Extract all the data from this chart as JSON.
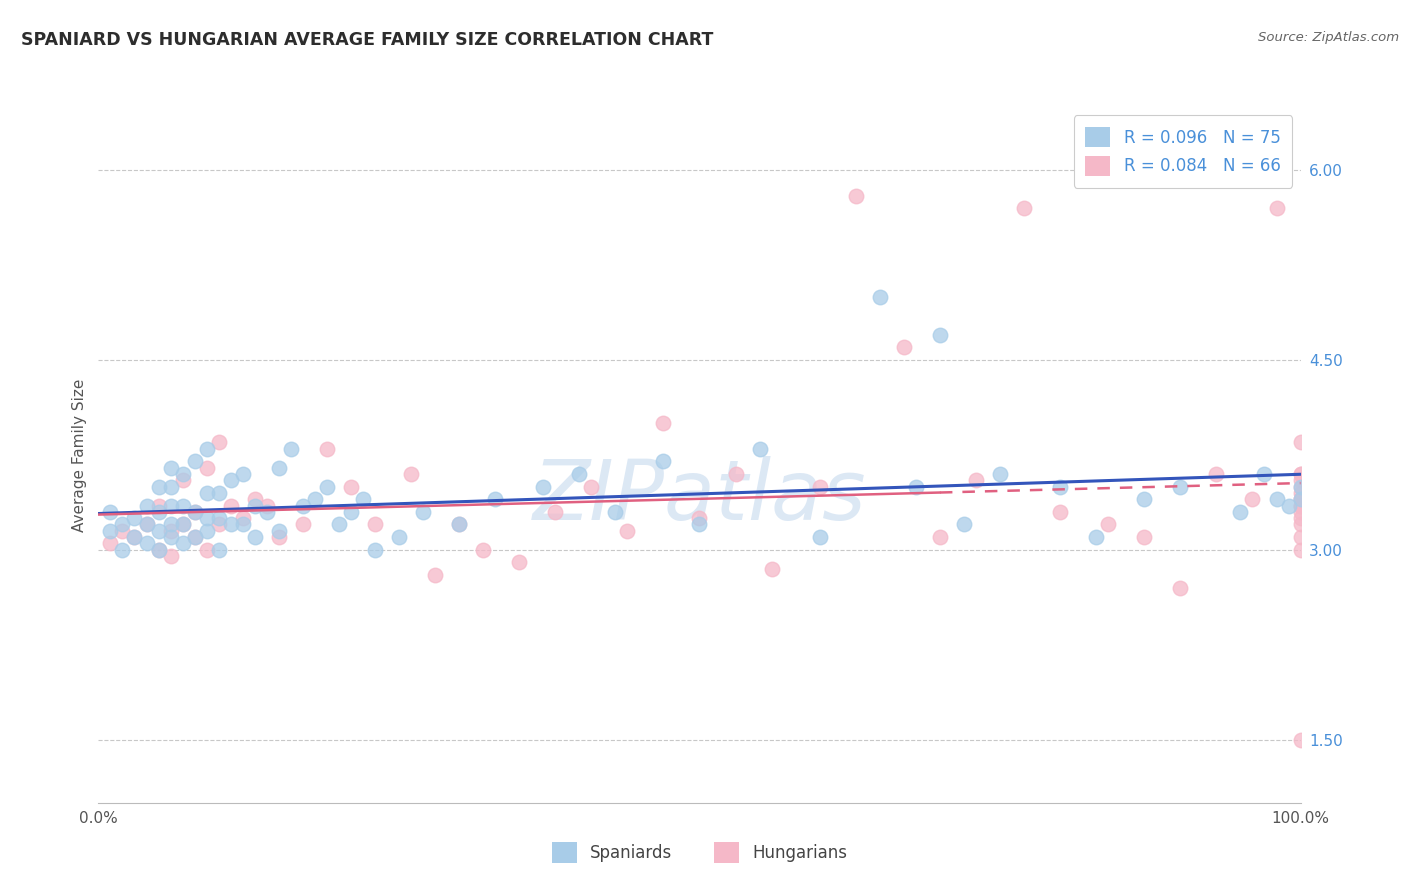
{
  "title": "SPANIARD VS HUNGARIAN AVERAGE FAMILY SIZE CORRELATION CHART",
  "source": "Source: ZipAtlas.com",
  "ylabel": "Average Family Size",
  "yticks": [
    1.5,
    3.0,
    4.5,
    6.0
  ],
  "xlim": [
    0.0,
    100.0
  ],
  "ylim": [
    1.0,
    6.5
  ],
  "legend_r1": "R = 0.096   N = 75",
  "legend_r2": "R = 0.084   N = 66",
  "spaniards_color": "#a8cce8",
  "hungarians_color": "#f5b8c8",
  "trend_spaniards_color": "#3355bb",
  "trend_hungarians_color": "#e06080",
  "background_color": "#ffffff",
  "grid_color": "#c8c8c8",
  "watermark": "ZIPatlas",
  "watermark_color": "#c5d9ee",
  "title_color": "#2d2d2d",
  "source_color": "#666666",
  "axis_color": "#555555",
  "tick_color": "#4a90d9",
  "spaniards_x": [
    1,
    1,
    2,
    2,
    3,
    3,
    4,
    4,
    4,
    5,
    5,
    5,
    5,
    6,
    6,
    6,
    6,
    6,
    7,
    7,
    7,
    7,
    8,
    8,
    8,
    9,
    9,
    9,
    9,
    10,
    10,
    10,
    11,
    11,
    12,
    12,
    13,
    13,
    14,
    15,
    15,
    16,
    17,
    18,
    19,
    20,
    21,
    22,
    23,
    25,
    27,
    30,
    33,
    37,
    40,
    43,
    47,
    50,
    55,
    60,
    65,
    68,
    70,
    72,
    75,
    80,
    83,
    87,
    90,
    95,
    97,
    98,
    99,
    100,
    100
  ],
  "spaniards_y": [
    3.15,
    3.3,
    3.0,
    3.2,
    3.1,
    3.25,
    3.05,
    3.2,
    3.35,
    3.15,
    3.0,
    3.3,
    3.5,
    3.1,
    3.2,
    3.35,
    3.5,
    3.65,
    3.05,
    3.2,
    3.35,
    3.6,
    3.1,
    3.3,
    3.7,
    3.15,
    3.25,
    3.45,
    3.8,
    3.0,
    3.25,
    3.45,
    3.2,
    3.55,
    3.2,
    3.6,
    3.1,
    3.35,
    3.3,
    3.15,
    3.65,
    3.8,
    3.35,
    3.4,
    3.5,
    3.2,
    3.3,
    3.4,
    3.0,
    3.1,
    3.3,
    3.2,
    3.4,
    3.5,
    3.6,
    3.3,
    3.7,
    3.2,
    3.8,
    3.1,
    5.0,
    3.5,
    4.7,
    3.2,
    3.6,
    3.5,
    3.1,
    3.4,
    3.5,
    3.3,
    3.6,
    3.4,
    3.35,
    3.5,
    3.4
  ],
  "hungarians_x": [
    1,
    2,
    3,
    4,
    5,
    5,
    6,
    6,
    7,
    7,
    8,
    8,
    9,
    9,
    10,
    10,
    11,
    12,
    13,
    14,
    15,
    17,
    19,
    21,
    23,
    26,
    28,
    30,
    32,
    35,
    38,
    41,
    44,
    47,
    50,
    53,
    56,
    60,
    63,
    67,
    70,
    73,
    77,
    80,
    84,
    87,
    90,
    93,
    96,
    98,
    100,
    100,
    100,
    100,
    100,
    100,
    100,
    100,
    100,
    100,
    100,
    100,
    100,
    100,
    100,
    100
  ],
  "hungarians_y": [
    3.05,
    3.15,
    3.1,
    3.2,
    3.0,
    3.35,
    2.95,
    3.15,
    3.2,
    3.55,
    3.1,
    3.3,
    3.0,
    3.65,
    3.2,
    3.85,
    3.35,
    3.25,
    3.4,
    3.35,
    3.1,
    3.2,
    3.8,
    3.5,
    3.2,
    3.6,
    2.8,
    3.2,
    3.0,
    2.9,
    3.3,
    3.5,
    3.15,
    4.0,
    3.25,
    3.6,
    2.85,
    3.5,
    5.8,
    4.6,
    3.1,
    3.55,
    5.7,
    3.3,
    3.2,
    3.1,
    2.7,
    3.6,
    3.4,
    5.7,
    3.85,
    3.4,
    3.55,
    3.35,
    3.6,
    3.25,
    3.45,
    3.2,
    3.4,
    3.0,
    3.3,
    3.6,
    3.1,
    3.35,
    3.5,
    1.5
  ]
}
